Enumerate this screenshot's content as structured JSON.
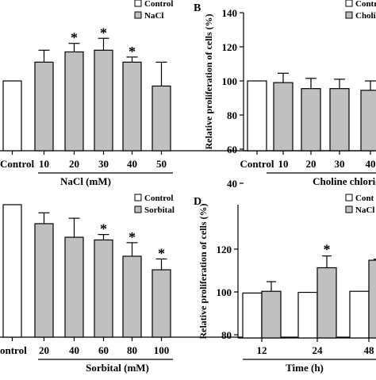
{
  "chart_data": [
    {
      "panel_letter": "",
      "type": "bar",
      "categories": [
        "Control",
        "10",
        "20",
        "30",
        "40",
        "50"
      ],
      "series": [
        {
          "name": "Control",
          "values": [
            100,
            null,
            null,
            null,
            null,
            null
          ]
        },
        {
          "name": "NaCl",
          "values": [
            null,
            111,
            117,
            118,
            111,
            97
          ]
        }
      ],
      "errors": [
        0,
        7,
        5,
        7,
        3,
        14
      ],
      "significant": [
        false,
        false,
        true,
        true,
        true,
        false
      ],
      "ylabel": "",
      "xlabel": "NaCl (mM)",
      "yticks": [],
      "ylim": [
        70,
        140
      ],
      "legend": [
        "Control",
        "NaCl"
      ]
    },
    {
      "panel_letter": "B",
      "type": "bar",
      "categories": [
        "Control",
        "10",
        "20",
        "30",
        "40"
      ],
      "series": [
        {
          "name": "Control",
          "values": [
            100,
            null,
            null,
            null,
            null
          ]
        },
        {
          "name": "Choli",
          "values": [
            null,
            99,
            95.5,
            95.5,
            94.5
          ]
        }
      ],
      "errors": [
        0,
        5.5,
        6,
        5.5,
        5.5
      ],
      "significant": [
        false,
        false,
        false,
        false,
        false
      ],
      "ylabel": "Relative proliferation of cells (%)",
      "xlabel": "Choline chloride (",
      "yticks": [
        "40",
        "60",
        "80",
        "100",
        "120",
        "140"
      ],
      "ylim": [
        40,
        140
      ],
      "legend": [
        "Control",
        "Choli"
      ]
    },
    {
      "panel_letter": "",
      "type": "bar",
      "categories": [
        "ontrol",
        "20",
        "40",
        "60",
        "80",
        "100"
      ],
      "series": [
        {
          "name": "Control",
          "values": [
            100,
            null,
            null,
            null,
            null,
            null
          ]
        },
        {
          "name": "Sorbital",
          "values": [
            null,
            93,
            88,
            87,
            81,
            76
          ]
        }
      ],
      "errors": [
        0,
        4,
        7,
        2,
        5,
        4
      ],
      "significant": [
        false,
        false,
        false,
        true,
        true,
        true
      ],
      "ylabel": "",
      "xlabel": "Sorbital (mM)",
      "yticks": [],
      "ylim": [
        0,
        100
      ],
      "legend": [
        "Control",
        "Sorbital"
      ]
    },
    {
      "panel_letter": "D",
      "type": "bar",
      "categories": [
        "12",
        "24",
        "48"
      ],
      "series": [
        {
          "name": "Cont",
          "values": [
            99.5,
            99.8,
            100.3
          ]
        },
        {
          "name": "NaCl",
          "values": [
            100.3,
            111.3,
            114.8
          ]
        }
      ],
      "errors_control": [
        0,
        0,
        0
      ],
      "errors_treated": [
        4.5,
        5.5,
        0.5
      ],
      "significant": [
        false,
        true,
        false
      ],
      "ylabel": "Relative proliferation of cells (%)",
      "xlabel": "Time (h)",
      "yticks": [
        "80",
        "100",
        "120"
      ],
      "ylim": [
        70,
        129
      ],
      "legend": [
        "Cont",
        "NaCl"
      ]
    }
  ]
}
